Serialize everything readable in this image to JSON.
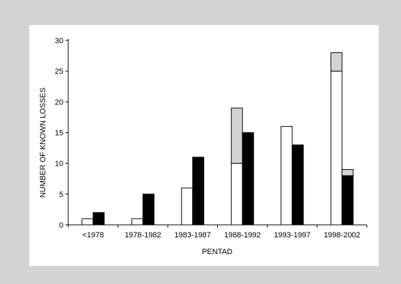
{
  "chart_data": {
    "type": "bar",
    "title": "",
    "xlabel": "PENTAD",
    "ylabel": "NUMBER OF KNOWN LOSSES",
    "categories": [
      "<1978",
      "1978-1982",
      "1983-1987",
      "1988-1992",
      "1993-1997",
      "1998-2002"
    ],
    "ylim": [
      0,
      30
    ],
    "yticks": [
      0,
      5,
      10,
      15,
      20,
      25,
      30
    ],
    "grid": false,
    "legend": "none",
    "groups": [
      {
        "stack": [
          {
            "fill": "white",
            "values": [
              1,
              1,
              6,
              10,
              16,
              25
            ]
          },
          {
            "fill": "gray",
            "values": [
              0,
              0,
              0,
              9,
              0,
              3
            ]
          }
        ]
      },
      {
        "stack": [
          {
            "fill": "black",
            "values": [
              2,
              5,
              11,
              15,
              13,
              8
            ]
          },
          {
            "fill": "gray",
            "values": [
              0,
              0,
              0,
              0,
              0,
              1
            ]
          }
        ]
      }
    ],
    "colors": {
      "white": "#ffffff",
      "gray": "#d3d3d3",
      "black": "#000000"
    }
  }
}
